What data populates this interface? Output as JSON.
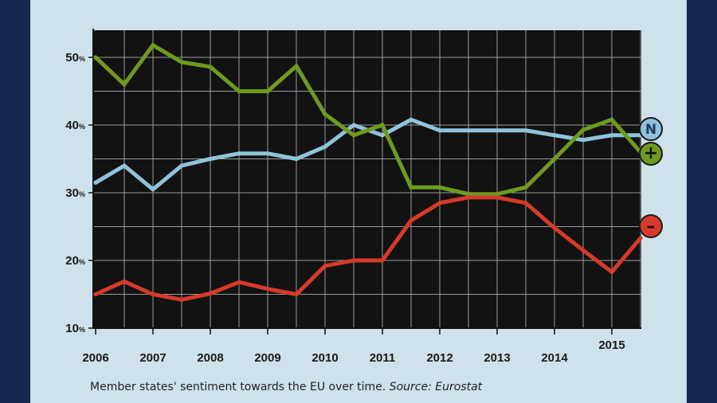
{
  "colors": {
    "background": "#16284f",
    "panel": "#cfe1ea",
    "plot_bg": "#121212",
    "grid": "#9a9a9a",
    "neutral": "#8fc3dc",
    "positive": "#6e9a1f",
    "negative": "#d63a2a"
  },
  "caption": {
    "text": "Member states' sentiment towards the EU over time.",
    "source": "Source: Eurostat"
  },
  "markers": {
    "neutral": "N",
    "positive": "+",
    "negative": "–"
  },
  "chart_data": {
    "type": "line",
    "title": "",
    "xlabel": "",
    "ylabel": "",
    "x": [
      2006,
      2006.5,
      2007,
      2007.5,
      2008,
      2008.5,
      2009,
      2009.5,
      2010,
      2010.5,
      2011,
      2011.5,
      2012,
      2012.5,
      2013,
      2013.5,
      2014,
      2014.5,
      2015,
      2015.5
    ],
    "xlim": [
      2006,
      2015.5
    ],
    "ylim": [
      10,
      54
    ],
    "x_ticks": [
      2006,
      2007,
      2008,
      2009,
      2010,
      2011,
      2012,
      2013,
      2014,
      2015
    ],
    "x_tick_labels": [
      "2006",
      "2007",
      "2008",
      "2009",
      "2010",
      "2011",
      "2012",
      "2013",
      "2014",
      "2015"
    ],
    "y_ticks": [
      10,
      20,
      30,
      40,
      50
    ],
    "y_tick_labels": [
      "10%",
      "20%",
      "30%",
      "40%",
      "50%"
    ],
    "grid": true,
    "series": [
      {
        "key": "neutral",
        "values": [
          31.5,
          34,
          30.5,
          34,
          35,
          35.8,
          35.8,
          35,
          36.8,
          40,
          38.5,
          40.8,
          39.2,
          39.2,
          39.2,
          39.2,
          38.5,
          37.8,
          38.5,
          38.5
        ]
      },
      {
        "key": "positive",
        "values": [
          50,
          46,
          51.8,
          49.3,
          48.6,
          45,
          45,
          48.7,
          41.6,
          38.5,
          40,
          30.8,
          30.8,
          29.8,
          29.8,
          30.8,
          35,
          39.3,
          40.8,
          36
        ]
      },
      {
        "key": "negative",
        "values": [
          15,
          16.9,
          15,
          14.2,
          15.1,
          16.8,
          15.8,
          15,
          19.2,
          20,
          20,
          25.9,
          28.5,
          29.3,
          29.3,
          28.5,
          24.8,
          21.5,
          18.3,
          23.3
        ]
      }
    ]
  }
}
